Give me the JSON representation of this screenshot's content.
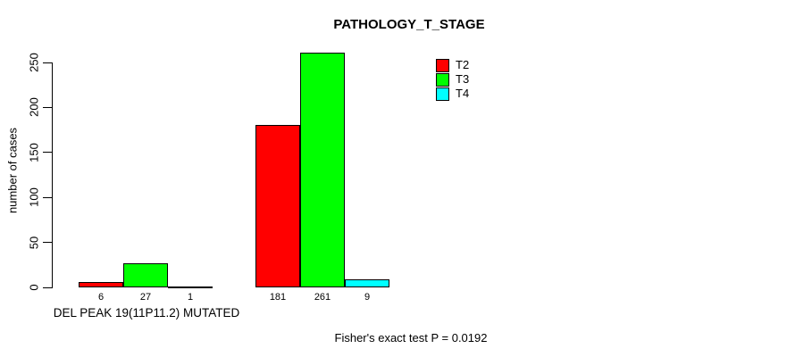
{
  "page": {
    "background": "#ffffff",
    "text_color": "#000000",
    "axis_color": "#000000"
  },
  "chart_data": {
    "type": "bar",
    "title": "PATHOLOGY_T_STAGE",
    "ylabel": "number of cases",
    "xlabel": "DEL PEAK 19(11P11.2) MUTATED",
    "annotation": "Fisher's exact test P = 0.0192",
    "categories": [
      "DEL PEAK 19(11P11.2) MUTATED",
      ""
    ],
    "series": [
      {
        "name": "T2",
        "color": "#ff0000",
        "values": [
          6,
          181
        ]
      },
      {
        "name": "T3",
        "color": "#00ff00",
        "values": [
          27,
          261
        ]
      },
      {
        "name": "T4",
        "color": "#00ffff",
        "values": [
          1,
          9
        ]
      }
    ],
    "bar_value_labels": [
      [
        6,
        27,
        1
      ],
      [
        181,
        261,
        9
      ]
    ],
    "yticks": [
      0,
      50,
      100,
      150,
      200,
      250
    ],
    "ylim": [
      0,
      250
    ],
    "legend": {
      "entries": [
        "T2",
        "T3",
        "T4"
      ],
      "position": "top-right"
    },
    "grid": "off"
  }
}
